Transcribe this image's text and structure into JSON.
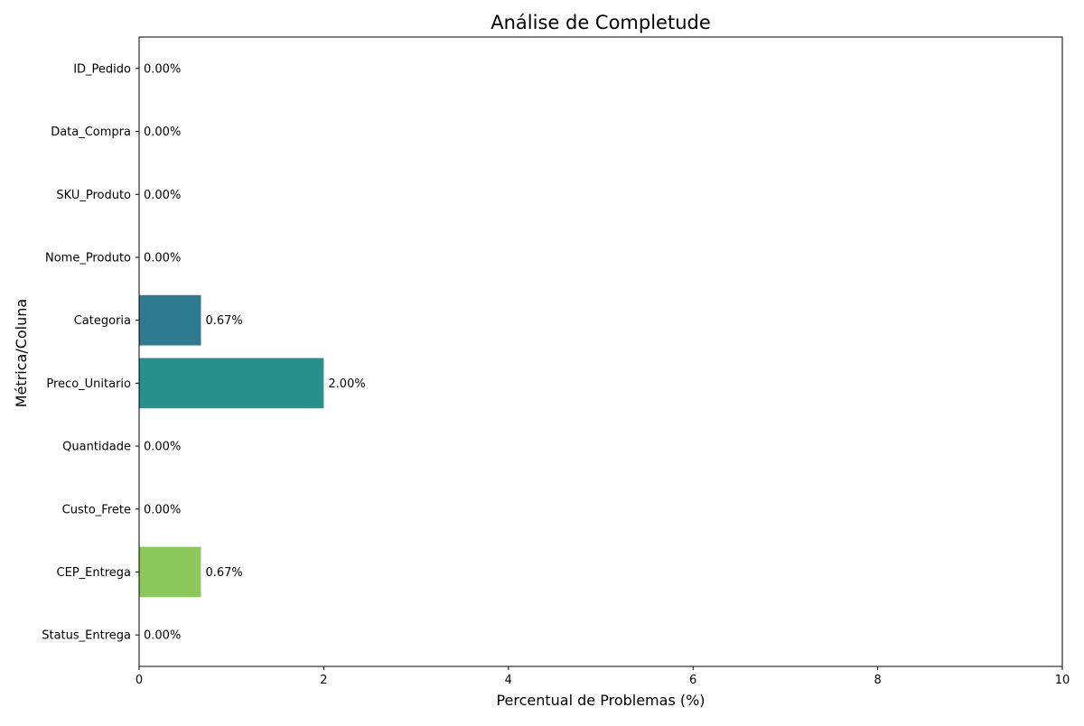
{
  "chart_data": {
    "type": "bar",
    "orientation": "horizontal",
    "title": "Análise de Completude",
    "xlabel": "Percentual de Problemas (%)",
    "ylabel": "Métrica/Coluna",
    "xlim": [
      0,
      10
    ],
    "xticks": [
      0,
      2,
      4,
      6,
      8,
      10
    ],
    "xtick_labels": [
      "0",
      "2",
      "4",
      "6",
      "8",
      "10"
    ],
    "grid": false,
    "categories": [
      "ID_Pedido",
      "Data_Compra",
      "SKU_Produto",
      "Nome_Produto",
      "Categoria",
      "Preco_Unitario",
      "Quantidade",
      "Custo_Frete",
      "CEP_Entrega",
      "Status_Entrega"
    ],
    "values": [
      0.0,
      0.0,
      0.0,
      0.0,
      0.67,
      2.0,
      0.0,
      0.0,
      0.67,
      0.0
    ],
    "value_labels": [
      "0.00%",
      "0.00%",
      "0.00%",
      "0.00%",
      "0.67%",
      "2.00%",
      "0.00%",
      "0.00%",
      "0.67%",
      "0.00%"
    ],
    "colors": [
      "#482475",
      "#45337d",
      "#3e4a89",
      "#355f8d",
      "#2e7a8e",
      "#27908d",
      "#1fa188",
      "#42be71",
      "#8bc75a",
      "#cde11d"
    ]
  }
}
